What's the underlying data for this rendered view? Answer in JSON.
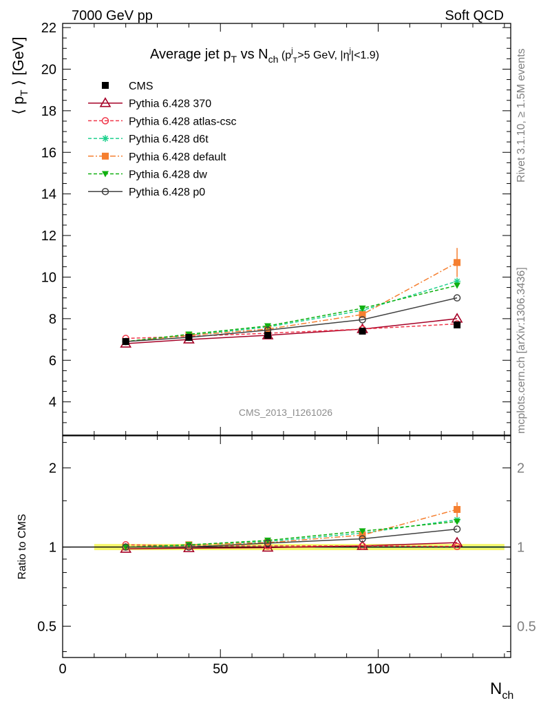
{
  "header": {
    "left": "7000 GeV pp",
    "right": "Soft QCD"
  },
  "side_labels": {
    "rivet": "Rivet 3.1.10, ≥ 1.5M events",
    "mcplots": "mcplots.cern.ch [arXiv:1306.3436]"
  },
  "analysis_tag": "CMS_2013_I1261026",
  "title": {
    "main": "Average jet p",
    "main_sub": "T",
    "vs": " vs N",
    "vs_sub": "ch",
    "cut_open": " (p",
    "cut_sup": "j",
    "cut_sub": "T",
    "cut_mid": ">5 GeV, |η",
    "cut_sup2": "j",
    "cut_close": "|<1.9)"
  },
  "colors": {
    "cms": "#000000",
    "p370": "#a50026",
    "atlas": "#f0364a",
    "d6t": "#1dd18d",
    "default": "#f57f30",
    "dw": "#10b010",
    "p0": "#404040",
    "band_yellow": "#f6f76c",
    "band_green": "#b4ec8c",
    "side_gray": "#7f7f7f"
  },
  "chart_data": [
    {
      "type": "line",
      "panel": "main",
      "ylabel": "⟨ p_T ⟩ [GeV]",
      "ylabel_parts": {
        "open": "⟨ p",
        "sub": "T",
        "close": " ⟩ [GeV]"
      },
      "xlim": [
        0,
        142
      ],
      "ylim": [
        2.4,
        22.2
      ],
      "yticks": [
        4,
        6,
        8,
        10,
        12,
        14,
        16,
        18,
        20,
        22
      ],
      "x": [
        20,
        40,
        65,
        95,
        125
      ],
      "series": [
        {
          "name": "CMS",
          "key": "cms",
          "marker": "square-filled",
          "dash": "none",
          "values": [
            6.9,
            7.1,
            7.2,
            7.4,
            7.7
          ],
          "errors": [
            0.1,
            0.1,
            0.1,
            0.12,
            0.15
          ]
        },
        {
          "name": "Pythia 6.428 370",
          "key": "p370",
          "marker": "triangle-open",
          "dash": "solid",
          "values": [
            6.8,
            7.0,
            7.2,
            7.5,
            8.0
          ]
        },
        {
          "name": "Pythia 6.428 atlas-csc",
          "key": "atlas",
          "marker": "circle-open",
          "dash": "dashed",
          "values": [
            7.05,
            7.15,
            7.3,
            7.5,
            7.75
          ]
        },
        {
          "name": "Pythia 6.428 d6t",
          "key": "d6t",
          "marker": "star",
          "dash": "dashed",
          "values": [
            6.9,
            7.2,
            7.6,
            8.4,
            9.8
          ]
        },
        {
          "name": "Pythia 6.428 default",
          "key": "default",
          "marker": "square-filled",
          "dash": "dashdot",
          "values": [
            6.9,
            7.2,
            7.5,
            8.2,
            10.7
          ],
          "errors": [
            0.05,
            0.05,
            0.08,
            0.15,
            0.7
          ]
        },
        {
          "name": "Pythia 6.428 dw",
          "key": "dw",
          "marker": "triangle-down-filled",
          "dash": "dashed",
          "values": [
            6.9,
            7.25,
            7.65,
            8.5,
            9.6
          ]
        },
        {
          "name": "Pythia 6.428 p0",
          "key": "p0",
          "marker": "circle-open",
          "dash": "solid",
          "values": [
            6.9,
            7.1,
            7.45,
            7.95,
            9.0
          ]
        }
      ]
    },
    {
      "type": "line",
      "panel": "ratio",
      "ylabel": "Ratio to CMS",
      "xlabel": "N_ch",
      "xlabel_parts": {
        "main": "N",
        "sub": "ch"
      },
      "xlim": [
        0,
        142
      ],
      "xticks": [
        0,
        50,
        100
      ],
      "yscale": "log",
      "ylim": [
        0.38,
        2.65
      ],
      "yticks": [
        0.5,
        1,
        2
      ],
      "ytick_labels": [
        "0.5",
        "1",
        "2"
      ],
      "x": [
        20,
        40,
        65,
        95,
        125
      ],
      "band": {
        "x_start": 10,
        "x_end": 140,
        "low": 0.985,
        "high": 1.015
      },
      "series": [
        {
          "name": "Pythia 6.428 370",
          "key": "p370",
          "values": [
            0.985,
            0.99,
            0.995,
            1.01,
            1.04
          ]
        },
        {
          "name": "Pythia 6.428 atlas-csc",
          "key": "atlas",
          "values": [
            1.02,
            1.01,
            1.01,
            1.01,
            1.005
          ]
        },
        {
          "name": "Pythia 6.428 d6t",
          "key": "d6t",
          "values": [
            1.0,
            1.015,
            1.05,
            1.13,
            1.27
          ]
        },
        {
          "name": "Pythia 6.428 default",
          "key": "default",
          "values": [
            1.0,
            1.02,
            1.04,
            1.11,
            1.39
          ],
          "errors": [
            0.005,
            0.005,
            0.01,
            0.02,
            0.09
          ]
        },
        {
          "name": "Pythia 6.428 dw",
          "key": "dw",
          "values": [
            1.0,
            1.02,
            1.06,
            1.15,
            1.25
          ]
        },
        {
          "name": "Pythia 6.428 p0",
          "key": "p0",
          "values": [
            1.0,
            1.0,
            1.035,
            1.075,
            1.17
          ]
        }
      ]
    }
  ]
}
